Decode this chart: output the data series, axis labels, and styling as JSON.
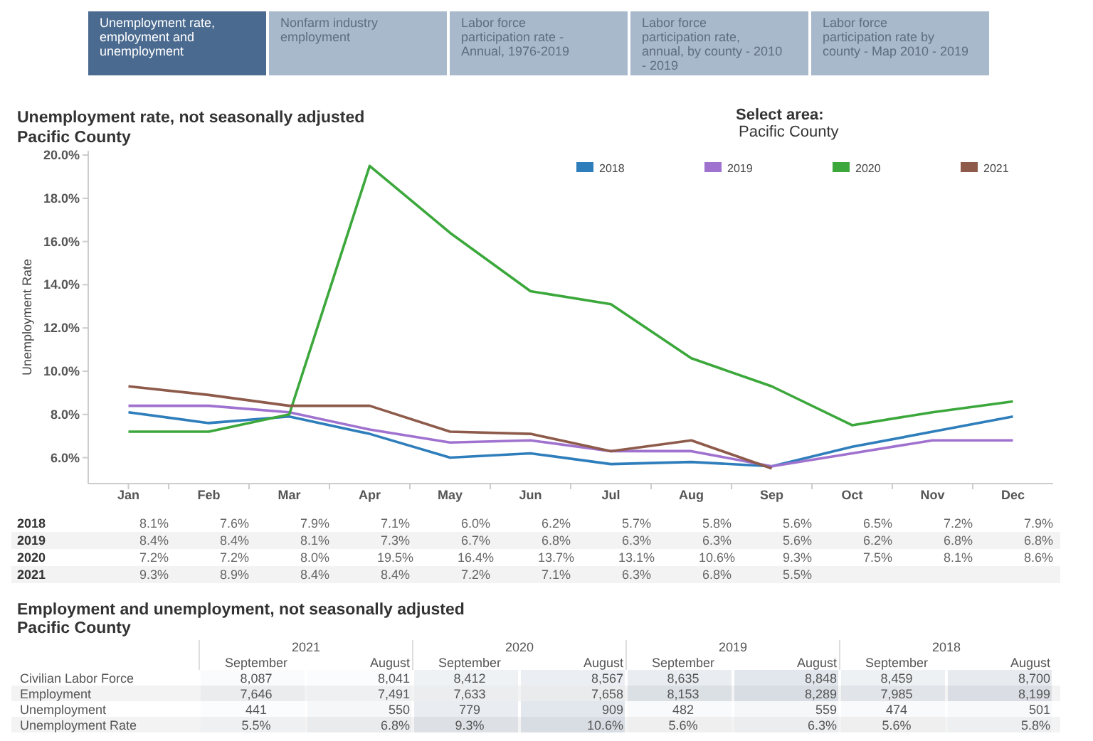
{
  "chart_data": [
    {
      "type": "other",
      "annotations": [
        "Unemployment rate, employment and unemployment",
        "Nonfarm industry employment",
        "Labor force participation rate - Annual, 1976-2019",
        "Labor force participation rate, annual, by county - 2010 - 2019",
        "Labor force participation rate by county - Map 2010 - 2019"
      ]
    },
    {
      "type": "line",
      "title": "Unemployment rate, not seasonally adjusted",
      "subtitle": "Pacific County",
      "ylabel": "Unemployment Rate",
      "annotations": [
        "Select area:",
        "Pacific County"
      ],
      "categories": [
        "Jan",
        "Feb",
        "Mar",
        "Apr",
        "May",
        "Jun",
        "Jul",
        "Aug",
        "Sep",
        "Oct",
        "Nov",
        "Dec"
      ],
      "series": [
        {
          "name": "2018",
          "color": "#2f7ebc",
          "values": [
            8.1,
            7.6,
            7.9,
            7.1,
            6.0,
            6.2,
            5.7,
            5.8,
            5.6,
            6.5,
            7.2,
            7.9
          ],
          "value_labels": [
            "8.1%",
            "7.6%",
            "7.9%",
            "7.1%",
            "6.0%",
            "6.2%",
            "5.7%",
            "5.8%",
            "5.6%",
            "6.5%",
            "7.2%",
            "7.9%"
          ]
        },
        {
          "name": "2019",
          "color": "#a072cf",
          "values": [
            8.4,
            8.4,
            8.1,
            7.3,
            6.7,
            6.8,
            6.3,
            6.3,
            5.6,
            6.2,
            6.8,
            6.8
          ],
          "value_labels": [
            "8.4%",
            "8.4%",
            "8.1%",
            "7.3%",
            "6.7%",
            "6.8%",
            "6.3%",
            "6.3%",
            "5.6%",
            "6.2%",
            "6.8%",
            "6.8%"
          ]
        },
        {
          "name": "2020",
          "color": "#3ca83c",
          "values": [
            7.2,
            7.2,
            8.0,
            19.5,
            16.4,
            13.7,
            13.1,
            10.6,
            9.3,
            7.5,
            8.1,
            8.6
          ],
          "value_labels": [
            "7.2%",
            "7.2%",
            "8.0%",
            "19.5%",
            "16.4%",
            "13.7%",
            "13.1%",
            "10.6%",
            "9.3%",
            "7.5%",
            "8.1%",
            "8.6%"
          ]
        },
        {
          "name": "2021",
          "color": "#8e5b4b",
          "values": [
            9.3,
            8.9,
            8.4,
            8.4,
            7.2,
            7.1,
            6.3,
            6.8,
            5.5,
            null,
            null,
            null
          ],
          "value_labels": [
            "9.3%",
            "8.9%",
            "8.4%",
            "8.4%",
            "7.2%",
            "7.1%",
            "6.3%",
            "6.8%",
            "5.5%",
            null,
            null,
            null
          ]
        }
      ],
      "ylim": [
        4.8,
        20.2
      ],
      "yticks": [
        {
          "value": 6,
          "label": "6.0%"
        },
        {
          "value": 8,
          "label": "8.0%"
        },
        {
          "value": 10,
          "label": "10.0%"
        },
        {
          "value": 12,
          "label": "12.0%"
        },
        {
          "value": 14,
          "label": "14.0%"
        },
        {
          "value": 16,
          "label": "16.0%"
        },
        {
          "value": 18,
          "label": "18.0%"
        },
        {
          "value": 20,
          "label": "20.0%"
        }
      ],
      "grid": false,
      "legend": "top right",
      "marker": "none",
      "line_style": "solid"
    },
    {
      "type": "heatmap",
      "title": "Employment and unemployment, not seasonally adjusted",
      "subtitle": "Pacific County",
      "annotations": [
        "2021",
        "2020",
        "2019",
        "2018"
      ],
      "categories": [
        "September",
        "August",
        "September",
        "August",
        "September",
        "August",
        "September",
        "August"
      ],
      "y_categories": [
        "Civilian Labor Force",
        "Employment",
        "Unemployment",
        "Unemployment Rate"
      ],
      "cells": [
        [
          8087,
          8041,
          8412,
          8567,
          8635,
          8848,
          8459,
          8700
        ],
        [
          7646,
          7491,
          7633,
          7658,
          8153,
          8289,
          7985,
          8199
        ],
        [
          441,
          550,
          779,
          909,
          482,
          559,
          474,
          501
        ],
        [
          5.5,
          6.8,
          9.3,
          10.6,
          5.6,
          6.3,
          5.6,
          5.8
        ]
      ],
      "cell_labels": [
        [
          "8,087",
          "8,041",
          "8,412",
          "8,567",
          "8,635",
          "8,848",
          "8,459",
          "8,700"
        ],
        [
          "7,646",
          "7,491",
          "7,633",
          "7,658",
          "8,153",
          "8,289",
          "7,985",
          "8,199"
        ],
        [
          "441",
          "550",
          "779",
          "909",
          "482",
          "559",
          "474",
          "501"
        ],
        [
          "5.5%",
          "6.8%",
          "9.3%",
          "10.6%",
          "5.6%",
          "6.3%",
          "5.6%",
          "5.8%"
        ]
      ]
    }
  ]
}
